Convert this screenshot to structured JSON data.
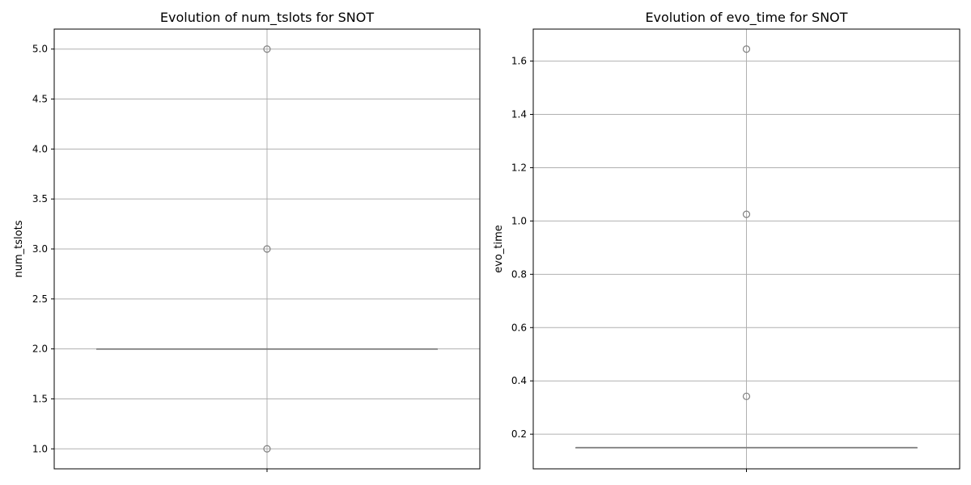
{
  "chart_data": [
    {
      "type": "box",
      "title": "Evolution of num_tslots for SNOT",
      "xlabel": "",
      "ylabel": "num_tslots",
      "ylim": [
        0.8,
        5.2
      ],
      "yticks": [
        "1.0",
        "1.5",
        "2.0",
        "2.5",
        "3.0",
        "3.5",
        "4.0",
        "4.5",
        "5.0"
      ],
      "grid": true,
      "box": {
        "q1": 2.0,
        "median": 2.0,
        "q3": 2.0,
        "whisker_low": 2.0,
        "whisker_high": 2.0
      },
      "outliers": [
        5.0,
        3.0,
        1.0
      ],
      "colors": {
        "box": "#808080",
        "outlier": "#808080",
        "grid": "#b0b0b0"
      }
    },
    {
      "type": "box",
      "title": "Evolution of evo_time for SNOT",
      "xlabel": "",
      "ylabel": "evo_time",
      "ylim": [
        0.07,
        1.72
      ],
      "yticks": [
        "0.2",
        "0.4",
        "0.6",
        "0.8",
        "1.0",
        "1.2",
        "1.4",
        "1.6"
      ],
      "grid": true,
      "box": {
        "q1": 0.15,
        "median": 0.15,
        "q3": 0.15,
        "whisker_low": 0.15,
        "whisker_high": 0.15
      },
      "outliers": [
        1.645,
        1.025,
        0.342
      ],
      "colors": {
        "box": "#808080",
        "outlier": "#808080",
        "grid": "#b0b0b0"
      }
    }
  ]
}
